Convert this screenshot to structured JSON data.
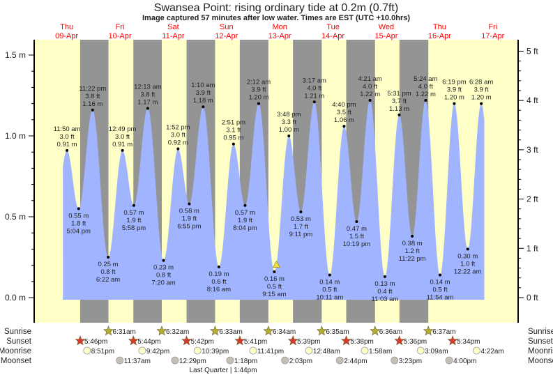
{
  "title": "Swansea Point: rising  ordinary tide at 0.2m (0.7ft)",
  "subtitle": "Image captured 57 minutes after low water. Times are EST (UTC +10.0hrs)",
  "colors": {
    "day": "#ffffc8",
    "night": "#949494",
    "water": "#a0b4ff",
    "sunrise": "#b4b034",
    "sunset": "#d8392b",
    "moonrise": "#ffffc8",
    "moonset": "#c4c0b4",
    "day_label": "#ff0000"
  },
  "chart_data": {
    "type": "area",
    "title": "Swansea Point: rising  ordinary tide at 0.2m (0.7ft)",
    "ylabel_left": "m",
    "ylabel_right": "ft",
    "ylim_m": [
      -0.02,
      1.6
    ],
    "left_ticks": [
      "0.0 m",
      "0.5 m",
      "1.0 m",
      "1.5 m"
    ],
    "left_tick_values": [
      0,
      0.5,
      1.0,
      1.5
    ],
    "right_ticks": [
      "0 ft",
      "1 ft",
      "2 ft",
      "3 ft",
      "4 ft",
      "5 ft"
    ],
    "right_tick_values": [
      0,
      1,
      2,
      3,
      4,
      5
    ],
    "days": [
      {
        "dow": "Thu",
        "date": "09-Apr"
      },
      {
        "dow": "Fri",
        "date": "10-Apr"
      },
      {
        "dow": "Sat",
        "date": "11-Apr"
      },
      {
        "dow": "Sun",
        "date": "12-Apr"
      },
      {
        "dow": "Mon",
        "date": "13-Apr"
      },
      {
        "dow": "Tue",
        "date": "14-Apr"
      },
      {
        "dow": "Wed",
        "date": "15-Apr"
      },
      {
        "dow": "Thu",
        "date": "16-Apr"
      },
      {
        "dow": "Fri",
        "date": "17-Apr"
      }
    ],
    "extremes": [
      {
        "day": 0,
        "time": "11:50 am",
        "m": "0.91 m",
        "ft": "3.0 ft",
        "value": 0.91,
        "type": "high"
      },
      {
        "day": 0,
        "time": "5:04 pm",
        "m": "0.55 m",
        "ft": "1.8 ft",
        "value": 0.55,
        "type": "low"
      },
      {
        "day": 0,
        "time": "11:22 pm",
        "m": "1.16 m",
        "ft": "3.8 ft",
        "value": 1.16,
        "type": "high"
      },
      {
        "day": 1,
        "time": "6:22 am",
        "m": "0.25 m",
        "ft": "0.8 ft",
        "value": 0.25,
        "type": "low"
      },
      {
        "day": 1,
        "time": "12:49 pm",
        "m": "0.91 m",
        "ft": "3.0 ft",
        "value": 0.91,
        "type": "high"
      },
      {
        "day": 1,
        "time": "5:58 pm",
        "m": "0.57 m",
        "ft": "1.9 ft",
        "value": 0.57,
        "type": "low"
      },
      {
        "day": 2,
        "time": "12:13 am",
        "m": "1.17 m",
        "ft": "3.8 ft",
        "value": 1.17,
        "type": "high"
      },
      {
        "day": 2,
        "time": "7:20 am",
        "m": "0.23 m",
        "ft": "0.8 ft",
        "value": 0.23,
        "type": "low"
      },
      {
        "day": 2,
        "time": "1:52 pm",
        "m": "0.92 m",
        "ft": "3.0 ft",
        "value": 0.92,
        "type": "high"
      },
      {
        "day": 2,
        "time": "6:55 pm",
        "m": "0.58 m",
        "ft": "1.9 ft",
        "value": 0.58,
        "type": "low"
      },
      {
        "day": 3,
        "time": "1:10 am",
        "m": "1.18 m",
        "ft": "3.9 ft",
        "value": 1.18,
        "type": "high"
      },
      {
        "day": 3,
        "time": "8:16 am",
        "m": "0.19 m",
        "ft": "0.6 ft",
        "value": 0.19,
        "type": "low"
      },
      {
        "day": 3,
        "time": "2:51 pm",
        "m": "0.95 m",
        "ft": "3.1 ft",
        "value": 0.95,
        "type": "high"
      },
      {
        "day": 3,
        "time": "8:04 pm",
        "m": "0.57 m",
        "ft": "1.9 ft",
        "value": 0.57,
        "type": "low"
      },
      {
        "day": 4,
        "time": "2:12 am",
        "m": "1.20 m",
        "ft": "3.9 ft",
        "value": 1.2,
        "type": "high"
      },
      {
        "day": 4,
        "time": "9:15 am",
        "m": "0.16 m",
        "ft": "0.5 ft",
        "value": 0.16,
        "type": "low"
      },
      {
        "day": 4,
        "time": "3:48 pm",
        "m": "1.00 m",
        "ft": "3.3 ft",
        "value": 1.0,
        "type": "high"
      },
      {
        "day": 4,
        "time": "9:11 pm",
        "m": "0.53 m",
        "ft": "1.7 ft",
        "value": 0.53,
        "type": "low"
      },
      {
        "day": 5,
        "time": "3:17 am",
        "m": "1.21 m",
        "ft": "4.0 ft",
        "value": 1.21,
        "type": "high"
      },
      {
        "day": 5,
        "time": "10:11 am",
        "m": "0.14 m",
        "ft": "0.5 ft",
        "value": 0.14,
        "type": "low"
      },
      {
        "day": 5,
        "time": "4:40 pm",
        "m": "1.06 m",
        "ft": "3.5 ft",
        "value": 1.06,
        "type": "high"
      },
      {
        "day": 5,
        "time": "10:19 pm",
        "m": "0.47 m",
        "ft": "1.5 ft",
        "value": 0.47,
        "type": "low"
      },
      {
        "day": 6,
        "time": "4:21 am",
        "m": "1.22 m",
        "ft": "4.0 ft",
        "value": 1.22,
        "type": "high"
      },
      {
        "day": 6,
        "time": "11:03 am",
        "m": "0.13 m",
        "ft": "0.4 ft",
        "value": 0.13,
        "type": "low"
      },
      {
        "day": 6,
        "time": "5:31 pm",
        "m": "1.13 m",
        "ft": "3.7 ft",
        "value": 1.13,
        "type": "high"
      },
      {
        "day": 6,
        "time": "11:22 pm",
        "m": "0.38 m",
        "ft": "1.2 ft",
        "value": 0.38,
        "type": "low"
      },
      {
        "day": 7,
        "time": "5:24 am",
        "m": "1.22 m",
        "ft": "4.0 ft",
        "value": 1.22,
        "type": "high"
      },
      {
        "day": 7,
        "time": "11:54 am",
        "m": "0.14 m",
        "ft": "0.5 ft",
        "value": 0.14,
        "type": "low"
      },
      {
        "day": 7,
        "time": "6:19 pm",
        "m": "1.20 m",
        "ft": "3.9 ft",
        "value": 1.2,
        "type": "high"
      },
      {
        "day": 8,
        "time": "12:22 am",
        "m": "0.30 m",
        "ft": "1.0 ft",
        "value": 0.3,
        "type": "low"
      },
      {
        "day": 8,
        "time": "6:28 am",
        "m": "1.20 m",
        "ft": "3.9 ft",
        "value": 1.2,
        "type": "high"
      }
    ],
    "current_marker": {
      "day": 4,
      "time": "10:12 am",
      "value": 0.2
    }
  },
  "rows": {
    "sunrise": {
      "label": "Sunrise",
      "events": [
        {
          "day": 1,
          "time": "6:31am"
        },
        {
          "day": 2,
          "time": "6:32am"
        },
        {
          "day": 3,
          "time": "6:33am"
        },
        {
          "day": 4,
          "time": "6:34am"
        },
        {
          "day": 5,
          "time": "6:35am"
        },
        {
          "day": 6,
          "time": "6:36am"
        },
        {
          "day": 7,
          "time": "6:37am"
        }
      ]
    },
    "sunset": {
      "label": "Sunset",
      "events": [
        {
          "day": 0,
          "time": "5:46pm"
        },
        {
          "day": 1,
          "time": "5:44pm"
        },
        {
          "day": 2,
          "time": "5:42pm"
        },
        {
          "day": 3,
          "time": "5:41pm"
        },
        {
          "day": 4,
          "time": "5:39pm"
        },
        {
          "day": 5,
          "time": "5:38pm"
        },
        {
          "day": 6,
          "time": "5:36pm"
        },
        {
          "day": 7,
          "time": "5:34pm"
        }
      ]
    },
    "moonrise": {
      "label": "Moonrise",
      "events": [
        {
          "day": 0,
          "time": "8:51pm"
        },
        {
          "day": 1,
          "time": "9:42pm"
        },
        {
          "day": 2,
          "time": "10:39pm"
        },
        {
          "day": 3,
          "time": "11:41pm"
        },
        {
          "day": 5,
          "time": "12:48am"
        },
        {
          "day": 6,
          "time": "1:58am"
        },
        {
          "day": 7,
          "time": "3:09am"
        },
        {
          "day": 8,
          "time": "4:22am"
        }
      ]
    },
    "moonset": {
      "label": "Moonset",
      "events": [
        {
          "day": 1,
          "time": "11:37am"
        },
        {
          "day": 2,
          "time": "12:29pm"
        },
        {
          "day": 3,
          "time": "1:18pm"
        },
        {
          "day": 4,
          "time": "2:03pm"
        },
        {
          "day": 5,
          "time": "2:44pm"
        },
        {
          "day": 6,
          "time": "3:23pm"
        },
        {
          "day": 7,
          "time": "4:00pm"
        }
      ]
    }
  },
  "moon_phase": "Last Quarter | 1:44pm"
}
